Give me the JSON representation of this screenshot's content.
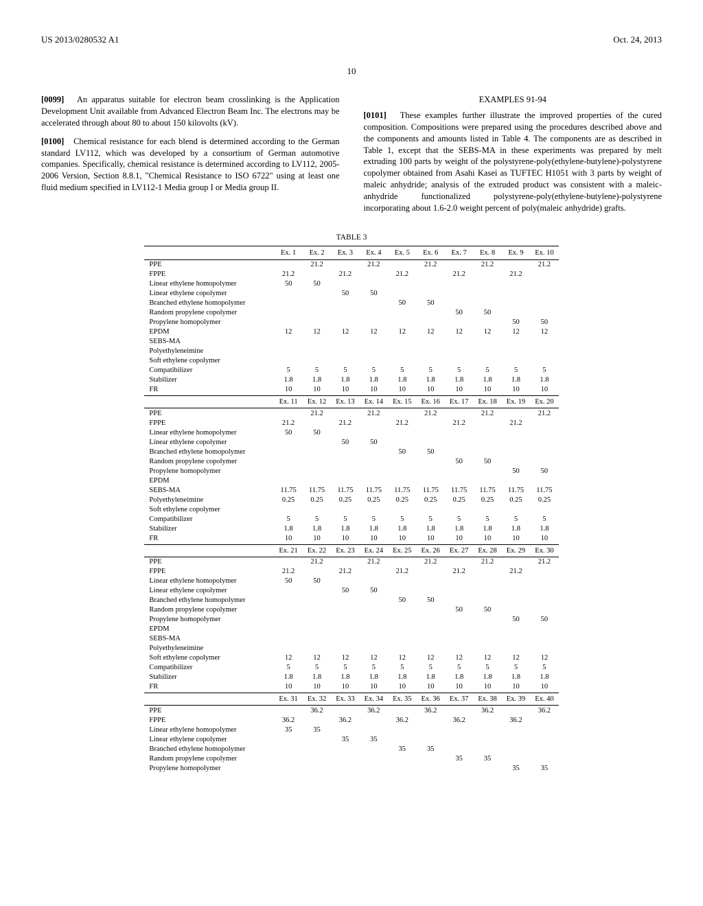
{
  "hdr": {
    "l": "US 2013/0280532 A1",
    "r": "Oct. 24, 2013"
  },
  "pg": "10",
  "c1": {
    "p1n": "[0099]",
    "p1": "An apparatus suitable for electron beam crosslinking is the Application Development Unit available from Advanced Electron Beam Inc. The electrons may be accelerated through about 80 to about 150 kilovolts (kV).",
    "p2n": "[0100]",
    "p2": "Chemical resistance for each blend is determined according to the German standard LV112, which was developed by a consortium of German automotive companies. Specifically, chemical resistance is determined according to LV112, 2005-2006 Version, Section 8.8.1, \"Chemical Resistance to ISO 6722\" using at least one fluid medium specified in LV112-1 Media group I or Media group II."
  },
  "c2": {
    "sh": "EXAMPLES 91-94",
    "p1n": "[0101]",
    "p1": "These examples further illustrate the improved properties of the cured composition. Compositions were prepared using the procedures described above and the components and amounts listed in Table 4. The components are as described in Table 1, except that the SEBS-MA in these experiments was prepared by melt extruding 100 parts by weight of the polystyrene-poly(ethylene-butylene)-polystyrene copolymer obtained from Asahi Kasei as TUFTEC H1051 with 3 parts by weight of maleic anhydride; analysis of the extruded product was consistent with a maleic-anhydride functionalized polystyrene-poly(ethylene-butylene)-polystyrene incorporating about 1.6-2.0 weight percent of poly(maleic anhydride) grafts."
  },
  "tt": "TABLE 3",
  "rows": [
    "PPE",
    "FPPE",
    "Linear ethylene homopolymer",
    "Linear ethylene copolymer",
    "Branched ethylene homopolymer",
    "Random propylene copolymer",
    "Propylene homopolymer",
    "EPDM",
    "SEBS-MA",
    "Polyethyleneimine",
    "Soft ethylene copolymer",
    "Compatibilizer",
    "Stabilizer",
    "FR"
  ],
  "sections": [
    {
      "h": [
        "Ex. 1",
        "Ex. 2",
        "Ex. 3",
        "Ex. 4",
        "Ex. 5",
        "Ex. 6",
        "Ex. 7",
        "Ex. 8",
        "Ex. 9",
        "Ex. 10"
      ],
      "d": [
        [
          "",
          "21.2",
          "",
          "21.2",
          "",
          "21.2",
          "",
          "21.2",
          "",
          "21.2"
        ],
        [
          "21.2",
          "",
          "21.2",
          "",
          "21.2",
          "",
          "21.2",
          "",
          "21.2",
          ""
        ],
        [
          "50",
          "50",
          "",
          "",
          "",
          "",
          "",
          "",
          "",
          ""
        ],
        [
          "",
          "",
          "50",
          "50",
          "",
          "",
          "",
          "",
          "",
          ""
        ],
        [
          "",
          "",
          "",
          "",
          "50",
          "50",
          "",
          "",
          "",
          ""
        ],
        [
          "",
          "",
          "",
          "",
          "",
          "",
          "50",
          "50",
          "",
          ""
        ],
        [
          "",
          "",
          "",
          "",
          "",
          "",
          "",
          "",
          "50",
          "50"
        ],
        [
          "12",
          "12",
          "12",
          "12",
          "12",
          "12",
          "12",
          "12",
          "12",
          "12"
        ],
        [
          "",
          "",
          "",
          "",
          "",
          "",
          "",
          "",
          "",
          ""
        ],
        [
          "",
          "",
          "",
          "",
          "",
          "",
          "",
          "",
          "",
          ""
        ],
        [
          "",
          "",
          "",
          "",
          "",
          "",
          "",
          "",
          "",
          ""
        ],
        [
          "5",
          "5",
          "5",
          "5",
          "5",
          "5",
          "5",
          "5",
          "5",
          "5"
        ],
        [
          "1.8",
          "1.8",
          "1.8",
          "1.8",
          "1.8",
          "1.8",
          "1.8",
          "1.8",
          "1.8",
          "1.8"
        ],
        [
          "10",
          "10",
          "10",
          "10",
          "10",
          "10",
          "10",
          "10",
          "10",
          "10"
        ]
      ]
    },
    {
      "h": [
        "Ex. 11",
        "Ex. 12",
        "Ex. 13",
        "Ex. 14",
        "Ex. 15",
        "Ex. 16",
        "Ex. 17",
        "Ex. 18",
        "Ex. 19",
        "Ex. 20"
      ],
      "d": [
        [
          "",
          "21.2",
          "",
          "21.2",
          "",
          "21.2",
          "",
          "21.2",
          "",
          "21.2"
        ],
        [
          "21.2",
          "",
          "21.2",
          "",
          "21.2",
          "",
          "21.2",
          "",
          "21.2",
          ""
        ],
        [
          "50",
          "50",
          "",
          "",
          "",
          "",
          "",
          "",
          "",
          ""
        ],
        [
          "",
          "",
          "50",
          "50",
          "",
          "",
          "",
          "",
          "",
          ""
        ],
        [
          "",
          "",
          "",
          "",
          "50",
          "50",
          "",
          "",
          "",
          ""
        ],
        [
          "",
          "",
          "",
          "",
          "",
          "",
          "50",
          "50",
          "",
          ""
        ],
        [
          "",
          "",
          "",
          "",
          "",
          "",
          "",
          "",
          "50",
          "50"
        ],
        [
          "",
          "",
          "",
          "",
          "",
          "",
          "",
          "",
          "",
          ""
        ],
        [
          "11.75",
          "11.75",
          "11.75",
          "11.75",
          "11.75",
          "11.75",
          "11.75",
          "11.75",
          "11.75",
          "11.75"
        ],
        [
          "0.25",
          "0.25",
          "0.25",
          "0.25",
          "0.25",
          "0.25",
          "0.25",
          "0.25",
          "0.25",
          "0.25"
        ],
        [
          "",
          "",
          "",
          "",
          "",
          "",
          "",
          "",
          "",
          ""
        ],
        [
          "5",
          "5",
          "5",
          "5",
          "5",
          "5",
          "5",
          "5",
          "5",
          "5"
        ],
        [
          "1.8",
          "1.8",
          "1.8",
          "1.8",
          "1.8",
          "1.8",
          "1.8",
          "1.8",
          "1.8",
          "1.8"
        ],
        [
          "10",
          "10",
          "10",
          "10",
          "10",
          "10",
          "10",
          "10",
          "10",
          "10"
        ]
      ]
    },
    {
      "h": [
        "Ex. 21",
        "Ex. 22",
        "Ex. 23",
        "Ex. 24",
        "Ex. 25",
        "Ex. 26",
        "Ex. 27",
        "Ex. 28",
        "Ex. 29",
        "Ex. 30"
      ],
      "d": [
        [
          "",
          "21.2",
          "",
          "21.2",
          "",
          "21.2",
          "",
          "21.2",
          "",
          "21.2"
        ],
        [
          "21.2",
          "",
          "21.2",
          "",
          "21.2",
          "",
          "21.2",
          "",
          "21.2",
          ""
        ],
        [
          "50",
          "50",
          "",
          "",
          "",
          "",
          "",
          "",
          "",
          ""
        ],
        [
          "",
          "",
          "50",
          "50",
          "",
          "",
          "",
          "",
          "",
          ""
        ],
        [
          "",
          "",
          "",
          "",
          "50",
          "50",
          "",
          "",
          "",
          ""
        ],
        [
          "",
          "",
          "",
          "",
          "",
          "",
          "50",
          "50",
          "",
          ""
        ],
        [
          "",
          "",
          "",
          "",
          "",
          "",
          "",
          "",
          "50",
          "50"
        ],
        [
          "",
          "",
          "",
          "",
          "",
          "",
          "",
          "",
          "",
          ""
        ],
        [
          "",
          "",
          "",
          "",
          "",
          "",
          "",
          "",
          "",
          ""
        ],
        [
          "",
          "",
          "",
          "",
          "",
          "",
          "",
          "",
          "",
          ""
        ],
        [
          "12",
          "12",
          "12",
          "12",
          "12",
          "12",
          "12",
          "12",
          "12",
          "12"
        ],
        [
          "5",
          "5",
          "5",
          "5",
          "5",
          "5",
          "5",
          "5",
          "5",
          "5"
        ],
        [
          "1.8",
          "1.8",
          "1.8",
          "1.8",
          "1.8",
          "1.8",
          "1.8",
          "1.8",
          "1.8",
          "1.8"
        ],
        [
          "10",
          "10",
          "10",
          "10",
          "10",
          "10",
          "10",
          "10",
          "10",
          "10"
        ]
      ]
    },
    {
      "h": [
        "Ex. 31",
        "Ex. 32",
        "Ex. 33",
        "Ex. 34",
        "Ex. 35",
        "Ex. 36",
        "Ex. 37",
        "Ex. 38",
        "Ex. 39",
        "Ex. 40"
      ],
      "d": [
        [
          "",
          "36.2",
          "",
          "36.2",
          "",
          "36.2",
          "",
          "36.2",
          "",
          "36.2"
        ],
        [
          "36.2",
          "",
          "36.2",
          "",
          "36.2",
          "",
          "36.2",
          "",
          "36.2",
          ""
        ],
        [
          "35",
          "35",
          "",
          "",
          "",
          "",
          "",
          "",
          "",
          ""
        ],
        [
          "",
          "",
          "35",
          "35",
          "",
          "",
          "",
          "",
          "",
          ""
        ],
        [
          "",
          "",
          "",
          "",
          "35",
          "35",
          "",
          "",
          "",
          ""
        ],
        [
          "",
          "",
          "",
          "",
          "",
          "",
          "35",
          "35",
          "",
          ""
        ],
        [
          "",
          "",
          "",
          "",
          "",
          "",
          "",
          "",
          "35",
          "35"
        ]
      ],
      "rows": 7
    }
  ]
}
